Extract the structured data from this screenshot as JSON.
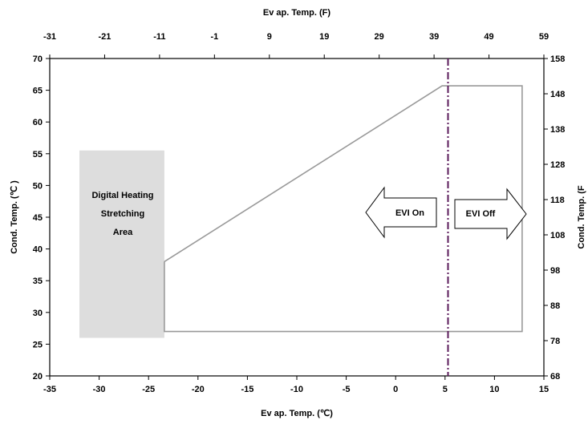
{
  "chart_data": {
    "type": "area",
    "xlabel_bottom": "Ev ap. Temp. (℃)",
    "xlabel_top": "Ev ap. Temp. (F)",
    "ylabel_left": "Cond. Temp. (℃ )",
    "ylabel_right": "Cond. Temp. (F",
    "xlim": [
      -35,
      15
    ],
    "ylim": [
      20,
      70
    ],
    "x_ticks": [
      "-35",
      "-30",
      "-25",
      "-20",
      "-15",
      "-10",
      "-5",
      "0",
      "5",
      "10",
      "15"
    ],
    "y_ticks": [
      "20",
      "25",
      "30",
      "35",
      "40",
      "45",
      "50",
      "55",
      "60",
      "65",
      "70"
    ],
    "x_ticks_top": [
      "-31",
      "-21",
      "-11",
      "-1",
      "9",
      "19",
      "29",
      "39",
      "49",
      "59"
    ],
    "y_ticks_right": [
      "68",
      "78",
      "88",
      "98",
      "108",
      "118",
      "128",
      "138",
      "148",
      "158"
    ],
    "series": [
      {
        "type": "area",
        "color": "#dddddd",
        "points": [
          [
            -32,
            26
          ],
          [
            -23.4,
            26
          ],
          [
            -23.4,
            55.5
          ],
          [
            -32,
            55.5
          ]
        ]
      },
      {
        "type": "line",
        "color": "#999999",
        "points": [
          [
            -23.4,
            38
          ],
          [
            4.7,
            65.7
          ],
          [
            12.8,
            65.7
          ],
          [
            12.8,
            27
          ],
          [
            -23.4,
            27
          ],
          [
            -23.4,
            38
          ]
        ]
      }
    ],
    "vline": {
      "x": 5.3,
      "color": "#5a1a5a"
    },
    "annotations": {
      "digital_area": [
        "Digital Heating",
        "Stretching",
        "Area"
      ],
      "evi_on": "EVI On",
      "evi_off": "EVI Off"
    }
  }
}
